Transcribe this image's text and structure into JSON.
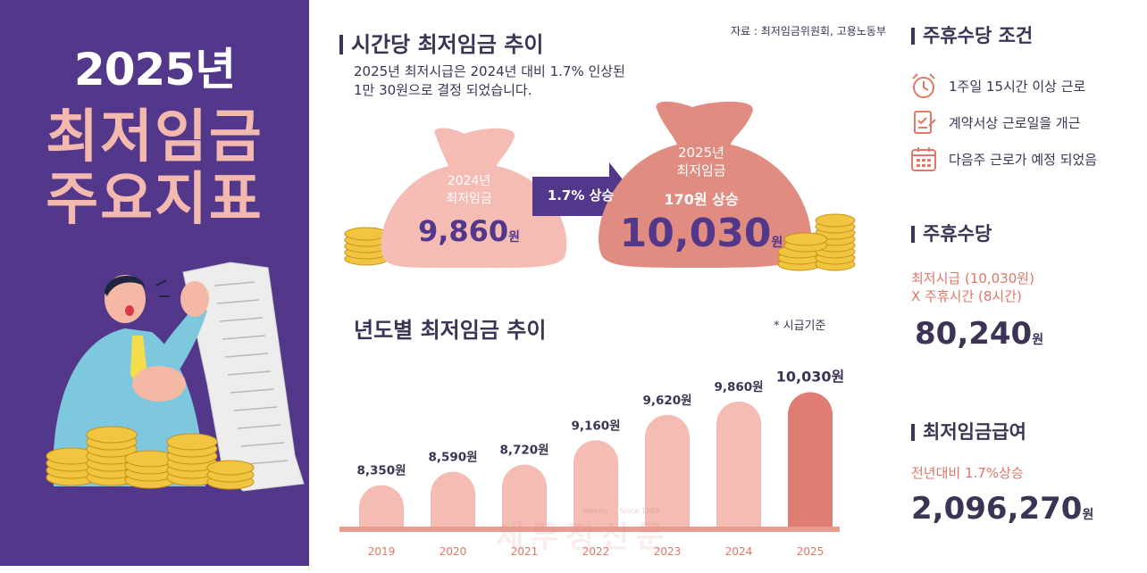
{
  "left": {
    "year": "2025년",
    "title_line1": "최저임금",
    "title_line2": "주요지표"
  },
  "hourly": {
    "title": "시간당 최저임금 추이",
    "source": "자료 : 최저임금위원회, 고용노동부",
    "desc_line1": "2025년 최저시급은 2024년 대비 1.7% 인상된",
    "desc_line2": "1만 30원으로 결정 되었습니다.",
    "bag1": {
      "year": "2024년",
      "label": "최저임금",
      "amount": "9,860",
      "unit": "원"
    },
    "arrow_label": "1.7% 상승",
    "bag2": {
      "year": "2025년",
      "label": "최저임금",
      "rise": "170원 상승",
      "amount": "10,030",
      "unit": "원"
    }
  },
  "yearly": {
    "title": "년도별 최저임금 추이",
    "note": "* 시급기준",
    "watermark": "세무정신문",
    "watermark_small": "Weekly ... Since 1989"
  },
  "chart_data": {
    "type": "bar",
    "title": "년도별 최저임금 추이",
    "categories": [
      "2019",
      "2020",
      "2021",
      "2022",
      "2023",
      "2024",
      "2025"
    ],
    "values": [
      8350,
      8590,
      8720,
      9160,
      9620,
      9860,
      10030
    ],
    "labels": [
      "8,350원",
      "8,590원",
      "8,720원",
      "9,160원",
      "9,620원",
      "9,860원",
      "10,030원"
    ],
    "note": "* 시급기준",
    "ylim": [
      7600,
      10100
    ],
    "grid": false,
    "colors": {
      "bar": "#f5bcb4",
      "highlight": "#e07d72",
      "label": "#3d3355",
      "tick": "#e07767",
      "baseline": "#e99b90"
    }
  },
  "weekly_conditions": {
    "title": "주휴수당 조건",
    "items": [
      {
        "icon": "alarm-clock-icon",
        "label": "1주일 15시간 이상 근로"
      },
      {
        "icon": "contract-check-icon",
        "label": "계약서상 근로일을 개근"
      },
      {
        "icon": "calendar-icon",
        "label": "다음주 근로가 예정 되었음"
      }
    ]
  },
  "weekly_allowance": {
    "title": "주휴수당",
    "formula_line1": "최저시급 (10,030원)",
    "formula_line2": "X 주휴시간 (8시간)",
    "amount": "80,240",
    "unit": "원"
  },
  "min_wage_pay": {
    "title": "최저임금급여",
    "subtitle": "전년대비 1.7%상승",
    "amount": "2,096,270",
    "unit": "원"
  },
  "colors": {
    "purple": "#52378a",
    "dark_text": "#3d3355",
    "pink_light": "#f5bcb4",
    "pink_dark": "#e07d72",
    "accent": "#e07767",
    "coin": "#f1c53f"
  }
}
